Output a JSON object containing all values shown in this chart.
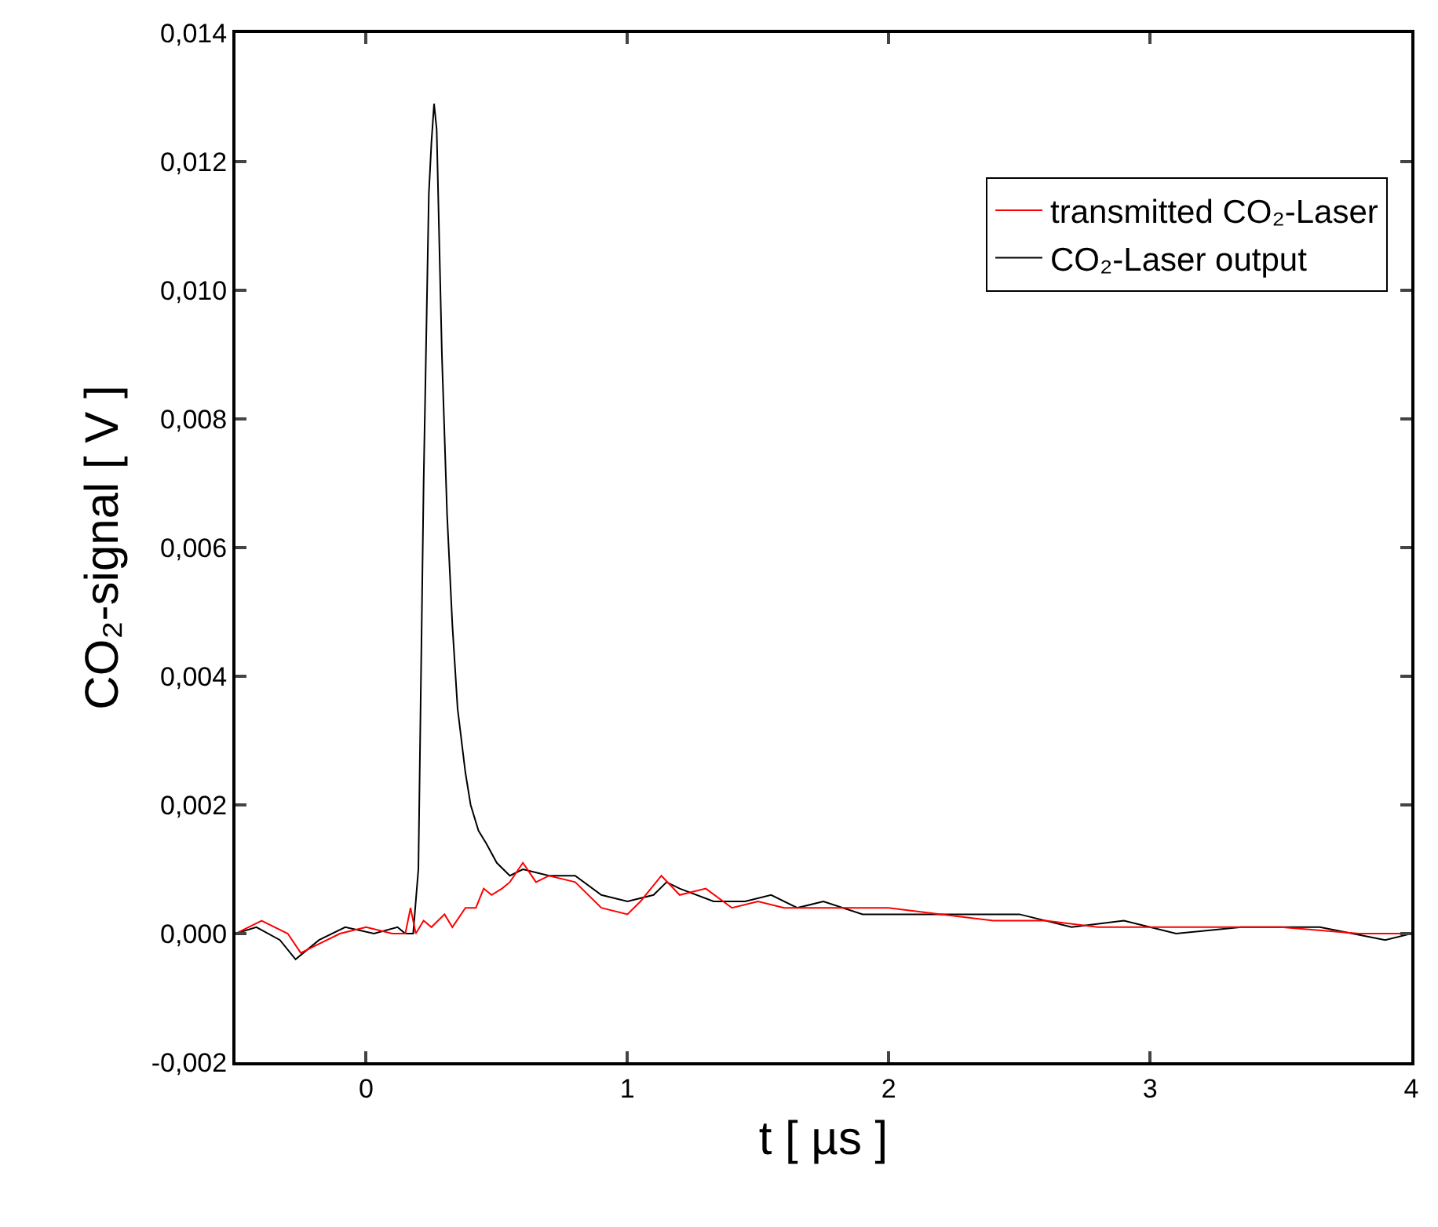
{
  "chart_data": {
    "type": "line",
    "xlabel": "t [ µs ]",
    "ylabel": "CO₂-signal [ V ]",
    "xlim": [
      -0.5,
      4
    ],
    "xticks": [
      0,
      1,
      2,
      3,
      4
    ],
    "ylim": [
      -0.002,
      0.014
    ],
    "yticks": [
      {
        "value": -0.002,
        "label": "-0,002"
      },
      {
        "value": 0,
        "label": "0,000"
      },
      {
        "value": 0.002,
        "label": "0,002"
      },
      {
        "value": 0.004,
        "label": "0,004"
      },
      {
        "value": 0.006,
        "label": "0,006"
      },
      {
        "value": 0.008,
        "label": "0,008"
      },
      {
        "value": 0.01,
        "label": "0,010"
      },
      {
        "value": 0.012,
        "label": "0,012"
      },
      {
        "value": 0.014,
        "label": "0,014"
      }
    ],
    "grid": false,
    "legend": "top right",
    "marker": "none",
    "line_style": "solid",
    "series": [
      {
        "name": "transmitted CO₂-Laser",
        "color": "#ff0000",
        "x": [
          -0.5,
          -0.4,
          -0.3,
          -0.25,
          -0.2,
          -0.1,
          0,
          0.1,
          0.15,
          0.17,
          0.19,
          0.22,
          0.25,
          0.3,
          0.33,
          0.38,
          0.42,
          0.45,
          0.48,
          0.52,
          0.55,
          0.6,
          0.65,
          0.7,
          0.8,
          0.9,
          1.0,
          1.05,
          1.13,
          1.2,
          1.3,
          1.4,
          1.5,
          1.6,
          1.7,
          1.8,
          2.0,
          2.2,
          2.4,
          2.6,
          2.8,
          3.0,
          3.2,
          3.5,
          3.8,
          4.0
        ],
        "values": [
          0.0,
          0.0002,
          0.0,
          -0.0003,
          -0.0002,
          0.0,
          0.0001,
          0.0,
          0.0,
          0.0004,
          0.0,
          0.0002,
          0.0001,
          0.0003,
          0.0001,
          0.0004,
          0.0004,
          0.0007,
          0.0006,
          0.0007,
          0.0008,
          0.0011,
          0.0008,
          0.0009,
          0.0008,
          0.0004,
          0.0003,
          0.0005,
          0.0009,
          0.0006,
          0.0007,
          0.0004,
          0.0005,
          0.0004,
          0.0004,
          0.0004,
          0.0004,
          0.0003,
          0.0002,
          0.0002,
          0.0001,
          0.0001,
          0.0001,
          0.0001,
          0.0,
          0.0
        ]
      },
      {
        "name": "CO₂-Laser output",
        "color": "#000000",
        "x": [
          -0.5,
          -0.42,
          -0.33,
          -0.27,
          -0.18,
          -0.08,
          0.03,
          0.12,
          0.15,
          0.18,
          0.2,
          0.22,
          0.24,
          0.25,
          0.26,
          0.27,
          0.29,
          0.31,
          0.33,
          0.35,
          0.38,
          0.4,
          0.43,
          0.46,
          0.5,
          0.55,
          0.6,
          0.7,
          0.8,
          0.9,
          1.0,
          1.1,
          1.15,
          1.2,
          1.33,
          1.45,
          1.55,
          1.65,
          1.75,
          1.9,
          2.1,
          2.3,
          2.5,
          2.7,
          2.9,
          3.1,
          3.35,
          3.65,
          3.9,
          4.0
        ],
        "values": [
          0.0,
          0.0001,
          -0.0001,
          -0.0004,
          -0.0001,
          0.0001,
          0.0,
          0.0001,
          0.0,
          0.0,
          0.001,
          0.007,
          0.0115,
          0.0123,
          0.0129,
          0.0125,
          0.009,
          0.0065,
          0.0048,
          0.0035,
          0.0025,
          0.002,
          0.0016,
          0.0014,
          0.0011,
          0.0009,
          0.001,
          0.0009,
          0.0009,
          0.0006,
          0.0005,
          0.0006,
          0.0008,
          0.0007,
          0.0005,
          0.0005,
          0.0006,
          0.0004,
          0.0005,
          0.0003,
          0.0003,
          0.0003,
          0.0003,
          0.0001,
          0.0002,
          0.0,
          0.0001,
          0.0001,
          -0.0001,
          0.0
        ]
      }
    ]
  }
}
